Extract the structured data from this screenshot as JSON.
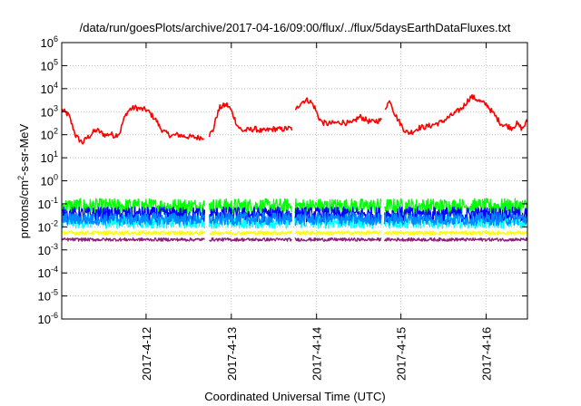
{
  "chart_data": {
    "type": "line",
    "title": "/data/run/goesPlots/archive/2017-04-16/09:00/flux/../flux/5daysEarthDataFluxes.txt",
    "xlabel": "Coordinated Universal Time (UTC)",
    "ylabel": {
      "pre": "protons/cm",
      "sup": "2",
      "post": "-s-sr-MeV"
    },
    "x_range_days": [
      0,
      5.3
    ],
    "x_ticks": [
      {
        "label": "2017-4-12",
        "day": 0.96
      },
      {
        "label": "2017-4-13",
        "day": 1.93
      },
      {
        "label": "2017-4-14",
        "day": 2.9
      },
      {
        "label": "2017-4-15",
        "day": 3.86
      },
      {
        "label": "2017-4-16",
        "day": 4.83
      }
    ],
    "y_scale": "log",
    "y_range": [
      1e-06,
      1000000.0
    ],
    "y_ticks": [
      {
        "base": "10",
        "exp": "-6",
        "value": 1e-06
      },
      {
        "base": "10",
        "exp": "-5",
        "value": 1e-05
      },
      {
        "base": "10",
        "exp": "-4",
        "value": 0.0001
      },
      {
        "base": "10",
        "exp": "-3",
        "value": 0.001
      },
      {
        "base": "10",
        "exp": "-2",
        "value": 0.01
      },
      {
        "base": "10",
        "exp": "-1",
        "value": 0.1
      },
      {
        "base": "10",
        "exp": "0",
        "value": 1
      },
      {
        "base": "10",
        "exp": "1",
        "value": 10
      },
      {
        "base": "10",
        "exp": "2",
        "value": 100
      },
      {
        "base": "10",
        "exp": "3",
        "value": 1000
      },
      {
        "base": "10",
        "exp": "4",
        "value": 10000
      },
      {
        "base": "10",
        "exp": "5",
        "value": 100000
      },
      {
        "base": "10",
        "exp": "6",
        "value": 1000000
      }
    ],
    "grid": true,
    "gaps_days": [
      [
        1.63,
        1.68
      ],
      [
        2.62,
        2.65
      ],
      [
        3.64,
        3.67
      ]
    ],
    "series": [
      {
        "color": "#ff0000",
        "noise": 0.12,
        "points": [
          [
            0.0,
            1200
          ],
          [
            0.08,
            700
          ],
          [
            0.12,
            250
          ],
          [
            0.16,
            90
          ],
          [
            0.2,
            60
          ],
          [
            0.24,
            45
          ],
          [
            0.28,
            70
          ],
          [
            0.32,
            90
          ],
          [
            0.36,
            130
          ],
          [
            0.4,
            160
          ],
          [
            0.45,
            120
          ],
          [
            0.5,
            95
          ],
          [
            0.55,
            110
          ],
          [
            0.6,
            90
          ],
          [
            0.66,
            120
          ],
          [
            0.7,
            400
          ],
          [
            0.74,
            900
          ],
          [
            0.78,
            1300
          ],
          [
            0.84,
            1500
          ],
          [
            0.9,
            1300
          ],
          [
            0.96,
            1200
          ],
          [
            1.0,
            900
          ],
          [
            1.04,
            600
          ],
          [
            1.08,
            400
          ],
          [
            1.12,
            200
          ],
          [
            1.18,
            120
          ],
          [
            1.25,
            90
          ],
          [
            1.32,
            100
          ],
          [
            1.4,
            85
          ],
          [
            1.48,
            80
          ],
          [
            1.55,
            75
          ],
          [
            1.62,
            80
          ],
          [
            1.68,
            100
          ],
          [
            1.72,
            150
          ],
          [
            1.76,
            600
          ],
          [
            1.8,
            1500
          ],
          [
            1.84,
            1800
          ],
          [
            1.88,
            2000
          ],
          [
            1.92,
            1300
          ],
          [
            1.96,
            600
          ],
          [
            2.0,
            250
          ],
          [
            2.05,
            150
          ],
          [
            2.12,
            160
          ],
          [
            2.2,
            180
          ],
          [
            2.28,
            140
          ],
          [
            2.35,
            160
          ],
          [
            2.42,
            180
          ],
          [
            2.5,
            170
          ],
          [
            2.58,
            190
          ],
          [
            2.62,
            180
          ],
          [
            2.65,
            800
          ],
          [
            2.68,
            1500
          ],
          [
            2.72,
            2500
          ],
          [
            2.76,
            3000
          ],
          [
            2.8,
            3200
          ],
          [
            2.84,
            2500
          ],
          [
            2.88,
            1500
          ],
          [
            2.92,
            600
          ],
          [
            2.96,
            350
          ],
          [
            3.02,
            300
          ],
          [
            3.1,
            320
          ],
          [
            3.2,
            350
          ],
          [
            3.3,
            300
          ],
          [
            3.36,
            500
          ],
          [
            3.4,
            600
          ],
          [
            3.46,
            450
          ],
          [
            3.52,
            350
          ],
          [
            3.58,
            400
          ],
          [
            3.64,
            420
          ],
          [
            3.67,
            1200
          ],
          [
            3.7,
            2000
          ],
          [
            3.74,
            3000
          ],
          [
            3.78,
            1000
          ],
          [
            3.82,
            500
          ],
          [
            3.86,
            280
          ],
          [
            3.9,
            160
          ],
          [
            3.94,
            120
          ],
          [
            4.0,
            140
          ],
          [
            4.06,
            200
          ],
          [
            4.14,
            220
          ],
          [
            4.2,
            250
          ],
          [
            4.26,
            300
          ],
          [
            4.32,
            350
          ],
          [
            4.38,
            500
          ],
          [
            4.44,
            700
          ],
          [
            4.5,
            1000
          ],
          [
            4.56,
            1500
          ],
          [
            4.62,
            3000
          ],
          [
            4.66,
            4500
          ],
          [
            4.72,
            3500
          ],
          [
            4.78,
            2500
          ],
          [
            4.84,
            2000
          ],
          [
            4.88,
            1200
          ],
          [
            4.94,
            600
          ],
          [
            5.0,
            300
          ],
          [
            5.06,
            250
          ],
          [
            5.12,
            200
          ],
          [
            5.18,
            300
          ],
          [
            5.24,
            180
          ],
          [
            5.3,
            400
          ]
        ]
      },
      {
        "color": "#00ff00",
        "noise": 0.33,
        "points": [
          [
            0.0,
            0.08
          ],
          [
            5.3,
            0.08
          ]
        ]
      },
      {
        "color": "#00ffff",
        "noise": 0.3,
        "points": [
          [
            0.0,
            0.017
          ],
          [
            5.3,
            0.017
          ]
        ]
      },
      {
        "color": "#0000ff",
        "noise": 0.32,
        "points": [
          [
            0.0,
            0.035
          ],
          [
            5.3,
            0.035
          ]
        ]
      },
      {
        "color": "#0088ff",
        "noise": 0.28,
        "points": [
          [
            0.0,
            0.022
          ],
          [
            5.3,
            0.022
          ]
        ]
      },
      {
        "color": "#ffff00",
        "noise": 0.08,
        "points": [
          [
            0.0,
            0.0055
          ],
          [
            5.3,
            0.0055
          ]
        ]
      },
      {
        "color": "#8b2277",
        "noise": 0.07,
        "points": [
          [
            0.0,
            0.0028
          ],
          [
            5.3,
            0.0028
          ]
        ]
      }
    ]
  }
}
